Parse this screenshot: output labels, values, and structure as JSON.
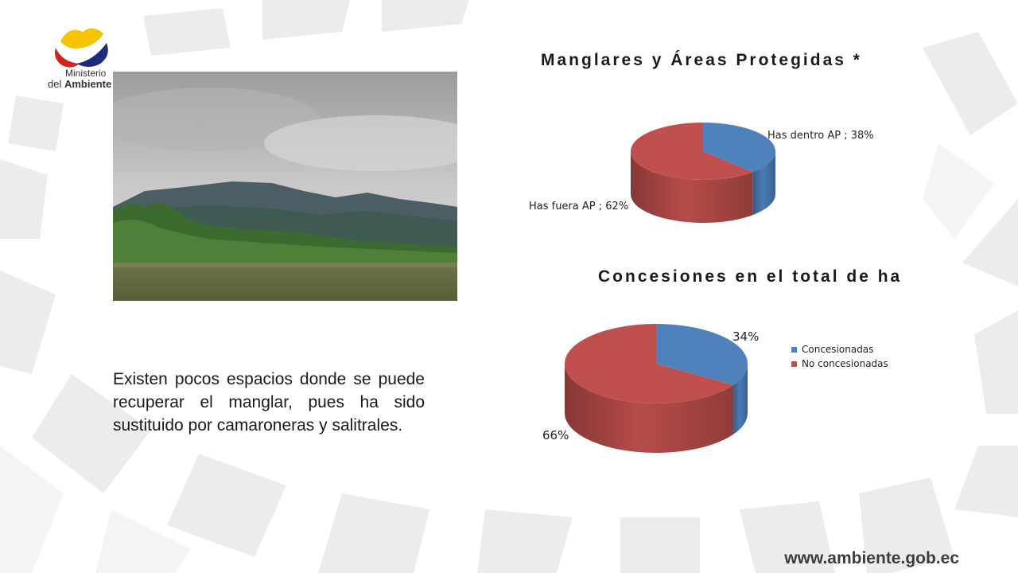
{
  "logo": {
    "line1": "Ministerio",
    "line2_prefix": "del ",
    "line2_bold": "Ambiente"
  },
  "description": "Existen pocos espacios donde se puede recuperar el manglar, pues ha sido sustituido por camaroneras y salitrales.",
  "website": "www.ambiente.gob.ec",
  "colors": {
    "blue": "#4f81bd",
    "red": "#c0504d"
  },
  "chart_data": [
    {
      "type": "pie",
      "title": "Manglares y Áreas Protegidas *",
      "slices": [
        {
          "label": "Has dentro AP",
          "value": 38,
          "data_label": "Has dentro AP ; 38%",
          "color": "#4f81bd"
        },
        {
          "label": "Has fuera AP",
          "value": 62,
          "data_label": "Has fuera AP ; 62%",
          "color": "#c0504d"
        }
      ],
      "legend": "none"
    },
    {
      "type": "pie",
      "title": "Concesiones en el total de ha",
      "slices": [
        {
          "label": "Concesionadas",
          "value": 34,
          "data_label": "34%",
          "color": "#4f81bd"
        },
        {
          "label": "No concesionadas",
          "value": 66,
          "data_label": "66%",
          "color": "#c0504d"
        }
      ],
      "legend": "right"
    }
  ]
}
